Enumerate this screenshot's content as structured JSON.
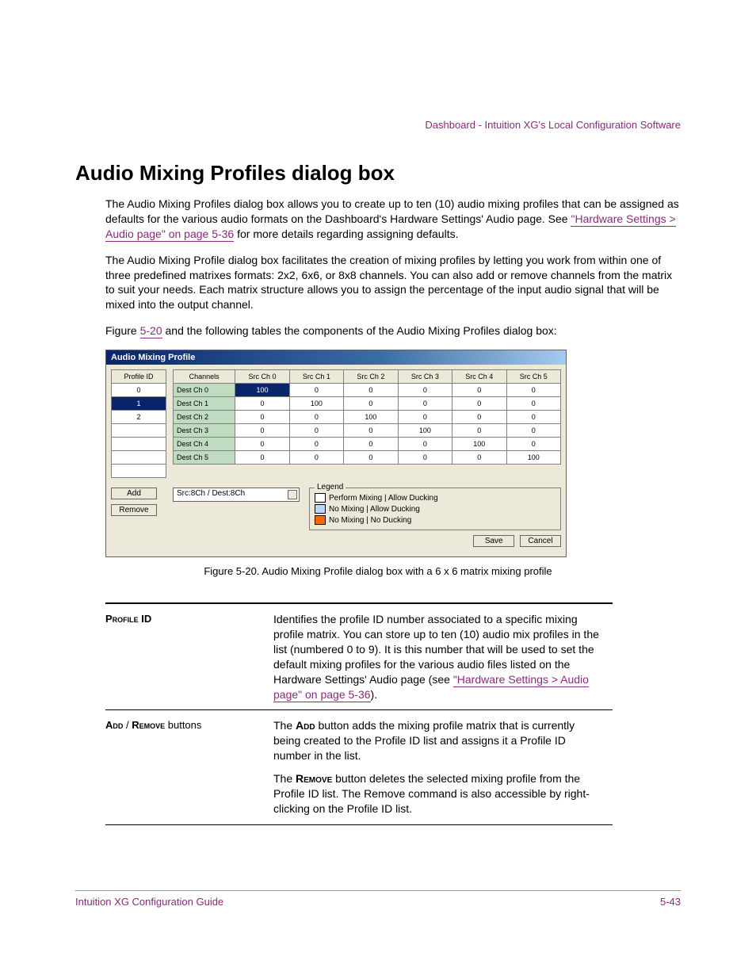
{
  "header": {
    "running": "Dashboard - Intuition XG's Local Configuration Software"
  },
  "title": "Audio Mixing Profiles dialog box",
  "p1_a": "The Audio Mixing Profiles dialog box allows you to create up to ten (10) audio mixing profiles that can be assigned as defaults for the various audio formats on the Dashboard's Hardware Settings' Audio page. See ",
  "p1_link": "\"Hardware Settings > Audio page\" on page 5-36",
  "p1_b": " for more details regarding assigning defaults.",
  "p2": "The Audio Mixing Profile dialog box facilitates the creation of mixing profiles by letting you work from within one of three predefined matrixes formats: 2x2, 6x6, or 8x8 channels. You can also add or remove channels from the matrix to suit your needs. Each matrix structure allows you to assign the percentage of the input audio signal that will be mixed into the output channel.",
  "p3_a": "Figure ",
  "p3_link": "5-20",
  "p3_b": " and the following tables the components of the Audio Mixing Profiles dialog box:",
  "dialog": {
    "title": "Audio Mixing Profile",
    "profile_header": "Profile ID",
    "profile_ids": [
      "0",
      "1",
      "2"
    ],
    "profile_selected_index": 1,
    "matrix": {
      "col_header_first": "Channels",
      "src_headers": [
        "Src Ch 0",
        "Src Ch 1",
        "Src Ch 2",
        "Src Ch 3",
        "Src Ch 4",
        "Src Ch 5"
      ],
      "dest_labels": [
        "Dest Ch 0",
        "Dest Ch 1",
        "Dest Ch 2",
        "Dest Ch 3",
        "Dest Ch 4",
        "Dest Ch 5"
      ],
      "values": [
        [
          100,
          0,
          0,
          0,
          0,
          0
        ],
        [
          0,
          100,
          0,
          0,
          0,
          0
        ],
        [
          0,
          0,
          100,
          0,
          0,
          0
        ],
        [
          0,
          0,
          0,
          100,
          0,
          0
        ],
        [
          0,
          0,
          0,
          0,
          100,
          0
        ],
        [
          0,
          0,
          0,
          0,
          0,
          100
        ]
      ],
      "highlight": {
        "row": 0,
        "col": 0
      }
    },
    "add_label": "Add",
    "remove_label": "Remove",
    "dropdown_value": "Src:8Ch / Dest:8Ch",
    "legend": {
      "title": "Legend",
      "items": [
        {
          "color": "#ffffff",
          "label": "Perform Mixing | Allow Ducking"
        },
        {
          "color": "#b8d8f8",
          "label": "No Mixing | Allow Ducking"
        },
        {
          "color": "#ff6a00",
          "label": "No Mixing | No Ducking"
        }
      ]
    },
    "save_label": "Save",
    "cancel_label": "Cancel"
  },
  "fig_caption": "Figure 5-20. Audio Mixing Profile dialog box with a 6 x 6 matrix mixing profile",
  "defs": [
    {
      "term_sc": "Profile ID",
      "desc_a": "Identifies the profile ID number associated to a specific mixing profile matrix. You can store up to ten (10) audio mix profiles in the list (numbered 0 to 9). It is this number that will be used to set the default mixing profiles for the various audio files listed on the Hardware Settings' Audio page (see ",
      "desc_link": "\"Hardware Settings > Audio page\" on page 5-36",
      "desc_b": ")."
    },
    {
      "term_html": "<span class='smallcaps'>Add</span> / <span class='smallcaps'>Remove</span> buttons",
      "para1_a": "The ",
      "para1_sc": "Add",
      "para1_b": " button adds the mixing profile matrix that is currently being created to the Profile ID list and assigns it a Profile ID number in the list.",
      "para2_a": "The ",
      "para2_sc": "Remove",
      "para2_b": " button deletes the selected mixing profile from the Profile ID list. The Remove command is also accessible by right-clicking on the Profile ID list."
    }
  ],
  "footer": {
    "left": "Intuition XG Configuration Guide",
    "right": "5-43"
  }
}
